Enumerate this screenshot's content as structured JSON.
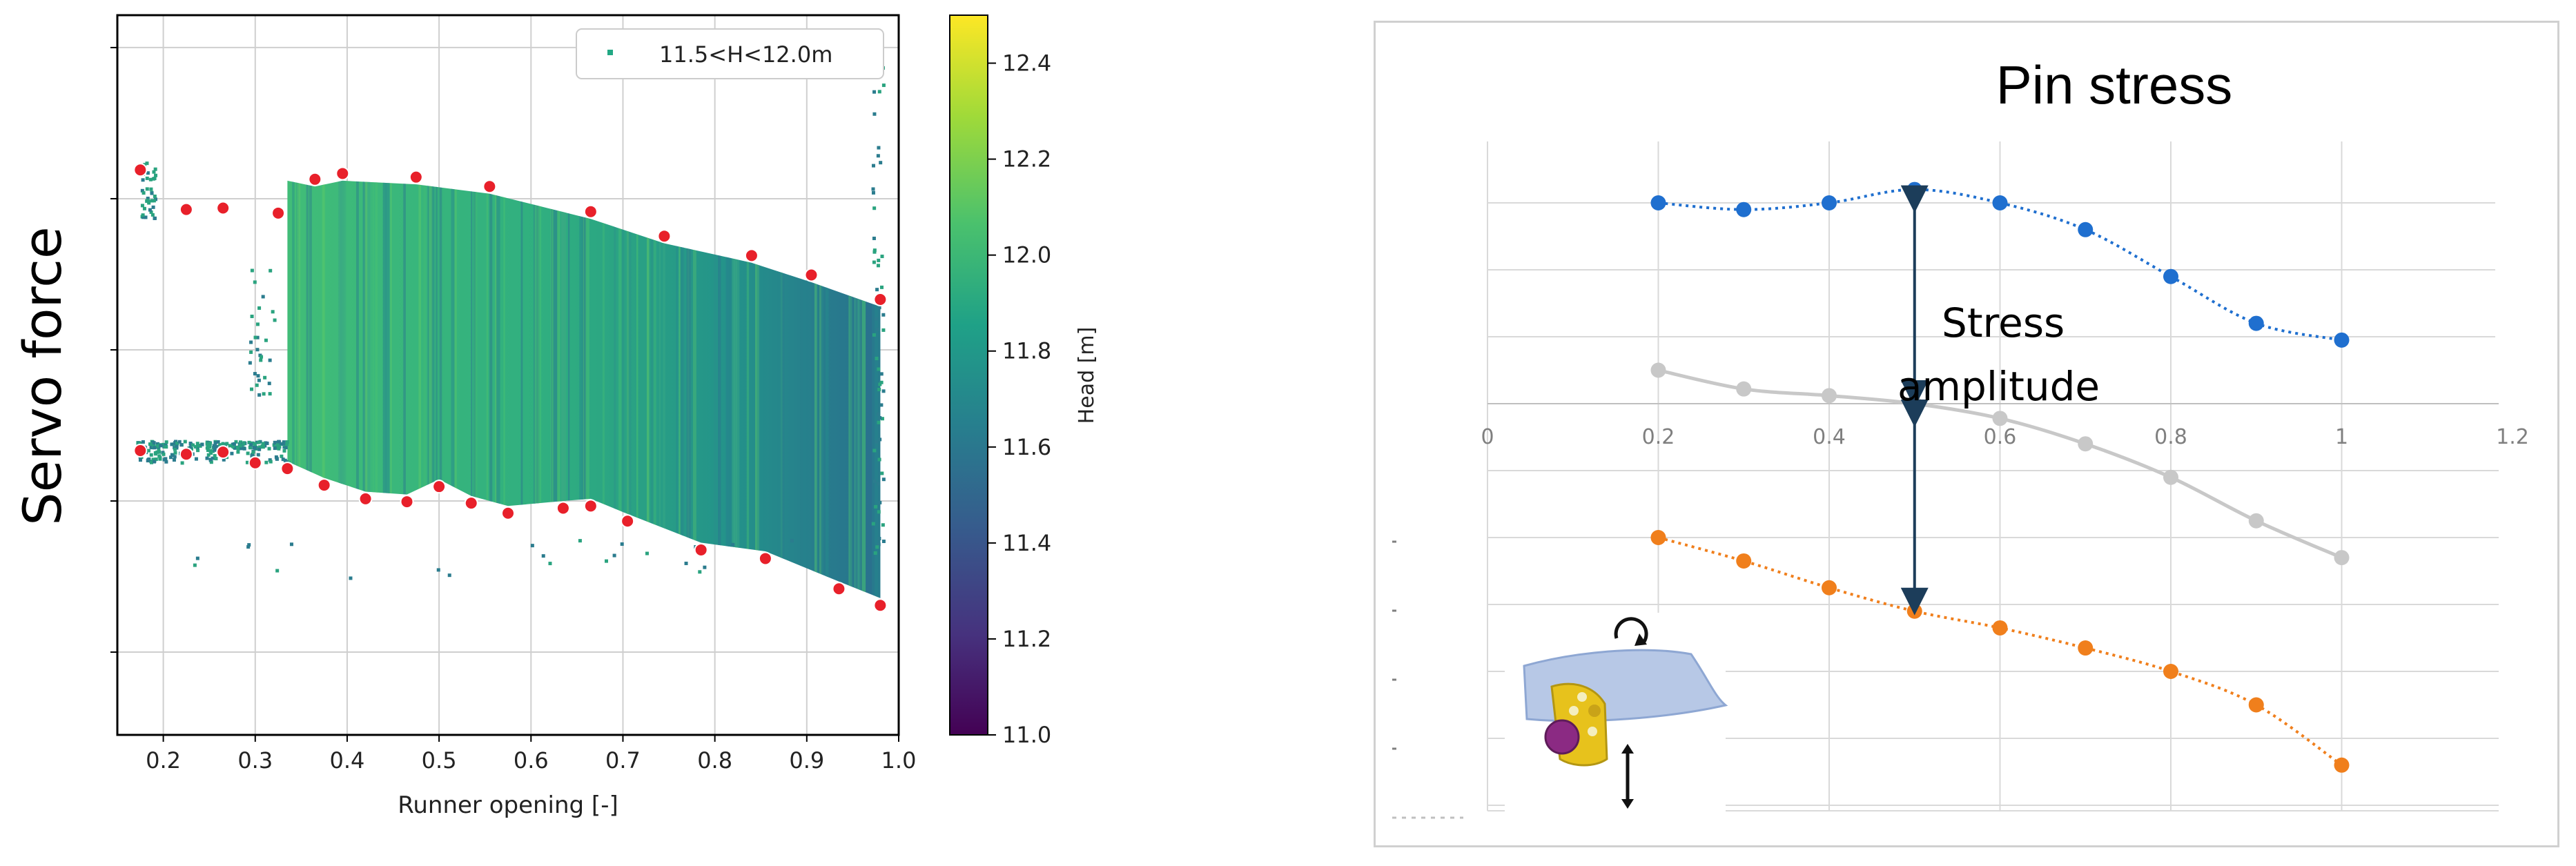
{
  "chart_data": [
    {
      "type": "scatter",
      "ylabel": "Servo force",
      "xlabel": "Runner opening [-]",
      "xlim": [
        0.15,
        1.0
      ],
      "ylim": [
        0,
        1
      ],
      "x_ticks": [
        "0.2",
        "0.3",
        "0.4",
        "0.5",
        "0.6",
        "0.7",
        "0.8",
        "0.9",
        "1.0"
      ],
      "y_ticks": [
        "",
        "",
        "",
        "",
        ""
      ],
      "grid": true,
      "legend": {
        "entries": [
          "11.5<H<12.0m"
        ],
        "placement": "top-right"
      },
      "colorbar": {
        "label": "Head [m]",
        "min": 11.0,
        "max": 12.5,
        "ticks": [
          "11.0",
          "11.2",
          "11.4",
          "11.6",
          "11.8",
          "12.0",
          "12.2",
          "12.4"
        ],
        "colormap": "viridis"
      },
      "colors": {
        "cloud_core": "#3fb97c",
        "cloud_mid": "#22a884",
        "cloud_dark": "#2a7f8e",
        "envelope_marker": "#e8202a"
      },
      "series": [
        {
          "name": "upper envelope",
          "x": [
            0.175,
            0.225,
            0.265,
            0.325,
            0.365,
            0.395,
            0.475,
            0.555,
            0.665,
            0.745,
            0.84,
            0.905,
            0.98
          ],
          "y": [
            0.785,
            0.73,
            0.732,
            0.725,
            0.772,
            0.78,
            0.775,
            0.762,
            0.727,
            0.693,
            0.666,
            0.639,
            0.605
          ]
        },
        {
          "name": "lower envelope",
          "x": [
            0.175,
            0.225,
            0.265,
            0.3,
            0.335,
            0.375,
            0.42,
            0.465,
            0.5,
            0.535,
            0.575,
            0.635,
            0.665,
            0.705,
            0.785,
            0.855,
            0.935,
            0.98
          ],
          "y": [
            0.395,
            0.39,
            0.393,
            0.378,
            0.37,
            0.347,
            0.328,
            0.324,
            0.345,
            0.322,
            0.308,
            0.315,
            0.318,
            0.297,
            0.257,
            0.245,
            0.203,
            0.18
          ]
        }
      ]
    },
    {
      "type": "line",
      "title": "Pin stress",
      "x_ticks": [
        "0",
        "0.2",
        "0.4",
        "0.6",
        "0.8",
        "1",
        "1.2"
      ],
      "xlim": [
        0,
        1.2
      ],
      "grid": true,
      "annotation": [
        "Stress",
        "amplitude"
      ],
      "colors": {
        "max": "#1f6fcf",
        "mean": "#c8c8c8",
        "min": "#f07f1c",
        "arrow": "#1c3d5a"
      },
      "series": [
        {
          "name": "max",
          "x": [
            0.2,
            0.3,
            0.4,
            0.5,
            0.6,
            0.7,
            0.8,
            0.9,
            1.0
          ],
          "y": [
            3.0,
            2.9,
            3.0,
            3.2,
            3.0,
            2.6,
            1.9,
            1.2,
            0.95
          ]
        },
        {
          "name": "mean",
          "x": [
            0.2,
            0.3,
            0.4,
            0.5,
            0.6,
            0.7,
            0.8,
            0.9,
            1.0
          ],
          "y": [
            0.5,
            0.22,
            0.12,
            0.0,
            -0.22,
            -0.6,
            -1.1,
            -1.75,
            -2.3
          ]
        },
        {
          "name": "min",
          "x": [
            0.2,
            0.3,
            0.4,
            0.5,
            0.6,
            0.7,
            0.8,
            0.9,
            1.0
          ],
          "y": [
            -2.0,
            -2.35,
            -2.75,
            -3.1,
            -3.35,
            -3.65,
            -4.0,
            -4.5,
            -5.4
          ]
        }
      ]
    }
  ]
}
